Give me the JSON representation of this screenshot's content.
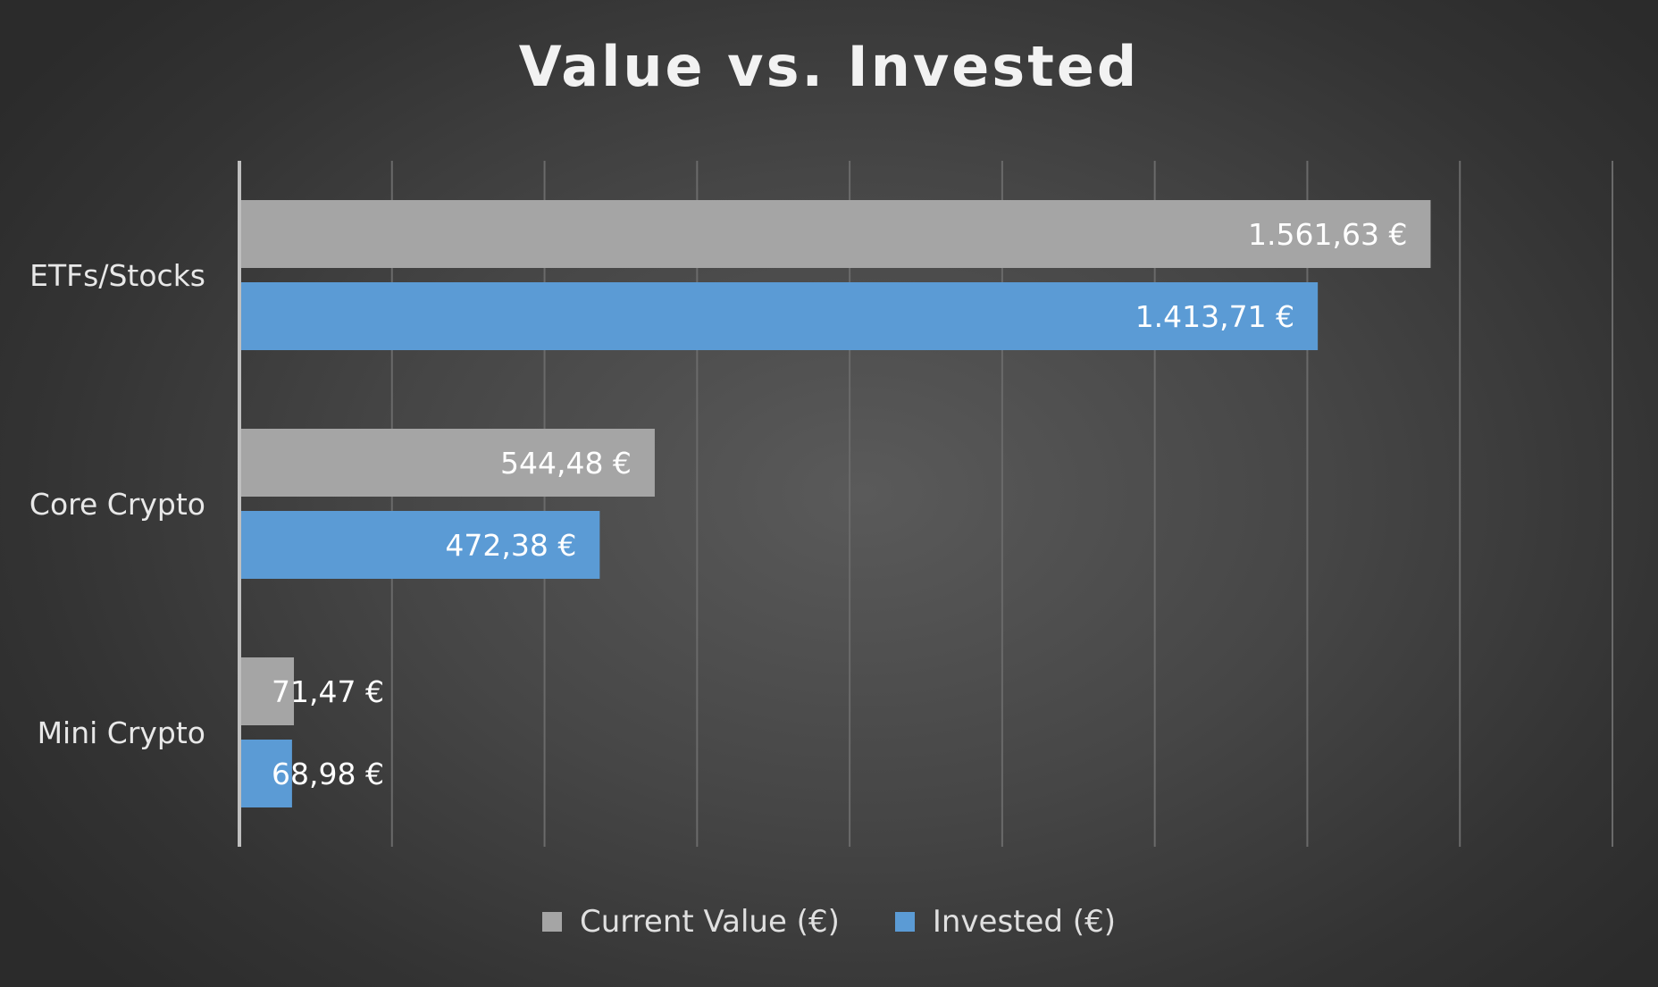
{
  "chart_data": {
    "type": "bar",
    "orientation": "horizontal",
    "title": "Value vs. Invested",
    "categories": [
      "ETFs/Stocks",
      "Core Crypto",
      "Mini Crypto"
    ],
    "series": [
      {
        "name": "Current Value (€)",
        "color": "#a5a5a5",
        "values": [
          1561.63,
          544.48,
          71.47
        ],
        "labels": [
          "1.561,63 €",
          "544,48 €",
          "71,47 €"
        ]
      },
      {
        "name": "Invested (€)",
        "color": "#5b9bd5",
        "values": [
          1413.71,
          472.38,
          68.98
        ],
        "labels": [
          "1.413,71 €",
          "472,38 €",
          "68,98 €"
        ]
      }
    ],
    "xlim": [
      0,
      1800
    ],
    "grid": true,
    "axis_labels_visible": false,
    "legend_position": "bottom"
  }
}
